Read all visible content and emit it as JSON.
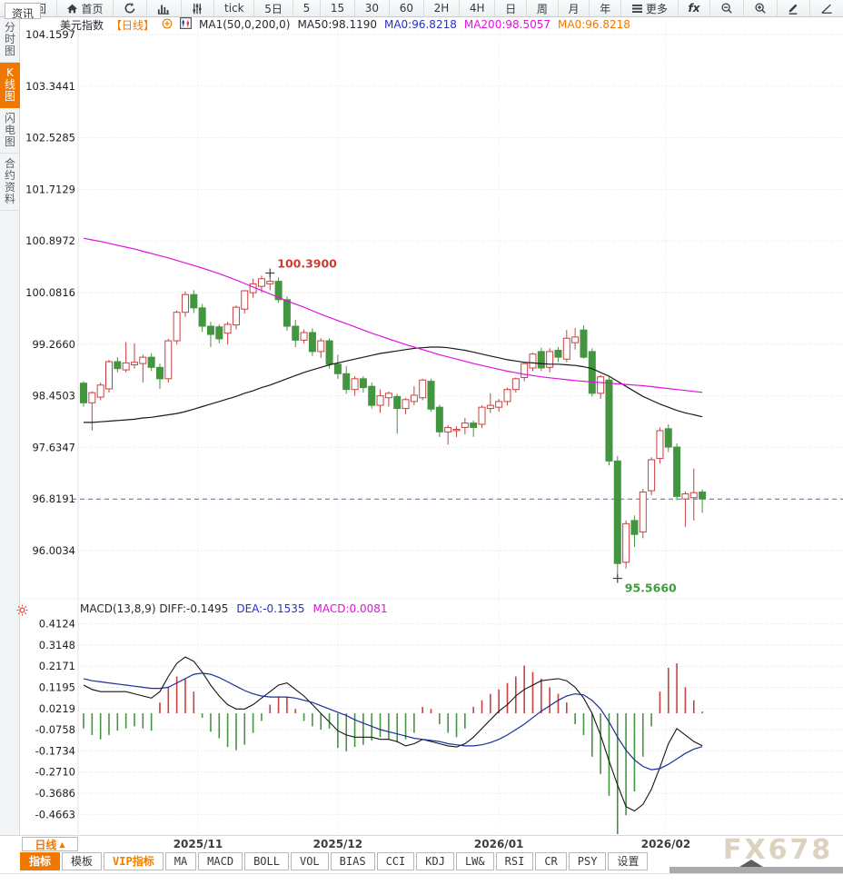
{
  "toolbar": {
    "items": [
      {
        "icon": "back-arrow-icon",
        "label": "返回"
      },
      {
        "icon": "home-icon",
        "label": "首页"
      },
      {
        "icon": "refresh-icon",
        "label": ""
      },
      {
        "icon": "bar-chart-icon",
        "label": ""
      },
      {
        "icon": "sliders-icon",
        "label": ""
      },
      {
        "label": "tick"
      },
      {
        "label": "5日"
      },
      {
        "label": "5"
      },
      {
        "label": "15"
      },
      {
        "label": "30"
      },
      {
        "label": "60"
      },
      {
        "label": "2H"
      },
      {
        "label": "4H"
      },
      {
        "label": "日"
      },
      {
        "label": "周"
      },
      {
        "label": "月"
      },
      {
        "label": "年"
      },
      {
        "icon": "menu-icon",
        "label": "更多"
      },
      {
        "icon": "fx-icon",
        "label": ""
      },
      {
        "icon": "zoom-out-icon",
        "label": ""
      },
      {
        "icon": "zoom-in-icon",
        "label": ""
      },
      {
        "icon": "pen-icon",
        "label": ""
      },
      {
        "icon": "angle-icon",
        "label": ""
      }
    ]
  },
  "sidebar": {
    "items": [
      {
        "label": "分时图",
        "selected": false
      },
      {
        "label": "K线图",
        "selected": true
      },
      {
        "label": "闪电图",
        "selected": false
      },
      {
        "label": "合约资料",
        "selected": false
      }
    ]
  },
  "chart_header": {
    "parts": [
      {
        "text": "美元指数",
        "cls": "hp-dark"
      },
      {
        "text": "【日线】",
        "cls": "hp-orange"
      },
      {
        "icon": "plus-circle-icon"
      },
      {
        "icon": "kline-mini-icon"
      },
      {
        "text": "MA1(50,0,200,0)",
        "cls": "hp-dark"
      },
      {
        "text": "MA50:98.1190",
        "cls": "hp-dark"
      },
      {
        "text": "MA0:96.8218",
        "cls": "hp-blue"
      },
      {
        "text": "MA200:98.5057",
        "cls": "hp-magenta"
      },
      {
        "text": "MA0:96.8218",
        "cls": "hp-orange"
      }
    ]
  },
  "macd_header": {
    "parts": [
      {
        "text": "MACD(13,8,9) DIFF:-0.1495",
        "cls": "hp-dark"
      },
      {
        "text": "DEA:-0.1535",
        "cls": "hp-blue"
      },
      {
        "text": "MACD:0.0081",
        "cls": "hp-magenta"
      }
    ]
  },
  "bottom_bar": {
    "period_label": "日线",
    "period_arrow": "▲",
    "tabs": [
      {
        "label": "指标",
        "selected": true
      },
      {
        "label": "模板"
      },
      {
        "label": "VIP指标",
        "vip": true
      },
      {
        "label": "MA"
      },
      {
        "label": "MACD"
      },
      {
        "label": "BOLL"
      },
      {
        "label": "VOL"
      },
      {
        "label": "BIAS"
      },
      {
        "label": "CCI"
      },
      {
        "label": "KDJ"
      },
      {
        "label": "LW&"
      },
      {
        "label": "RSI"
      },
      {
        "label": "CR"
      },
      {
        "label": "PSY"
      },
      {
        "label": "设置"
      }
    ],
    "partial_tab": "资讯"
  },
  "watermark": "FX678",
  "colors": {
    "accent_orange": "#f07800",
    "up_red": "#c94040",
    "down_green": "#43953f",
    "ma50_black": "#1a1a1a",
    "ma200_magenta": "#e012e0",
    "dea_blue": "#1b2f9b",
    "price_line_blue": "#2a7ad2",
    "grid": "#dedede",
    "annotation_red": "#cc3b33",
    "annotation_green": "#3f9c3f"
  },
  "chart_data": [
    {
      "type": "candlestick",
      "title": "美元指数 日线 (US Dollar Index, daily)",
      "ylabel": "price",
      "grid": true,
      "y_ticks": [
        104.1597,
        103.3441,
        102.5285,
        101.7129,
        100.8972,
        100.0816,
        99.266,
        98.4503,
        97.6347,
        96.8191,
        96.0034
      ],
      "price_line": 96.8191,
      "annotations": {
        "high": {
          "index": 22,
          "value": 100.39,
          "label": "100.3900"
        },
        "low": {
          "index": 63,
          "value": 95.566,
          "label": "95.5660"
        }
      },
      "x_labels": [
        {
          "label": "2025/11",
          "index": 13.5
        },
        {
          "label": "2025/12",
          "index": 30
        },
        {
          "label": "2026/01",
          "index": 49
        },
        {
          "label": "2026/02",
          "index": 68.7
        }
      ],
      "candles": [
        [
          98.65,
          98.68,
          98.28,
          98.34
        ],
        [
          98.34,
          98.52,
          97.9,
          98.5
        ],
        [
          98.43,
          98.66,
          98.38,
          98.62
        ],
        [
          98.56,
          99.02,
          98.5,
          98.99
        ],
        [
          98.99,
          99.06,
          98.82,
          98.88
        ],
        [
          98.86,
          99.3,
          98.82,
          98.97
        ],
        [
          98.94,
          99.28,
          98.88,
          98.98
        ],
        [
          98.96,
          99.1,
          98.66,
          99.06
        ],
        [
          99.06,
          99.12,
          98.84,
          98.9
        ],
        [
          98.9,
          98.96,
          98.56,
          98.72
        ],
        [
          98.72,
          99.35,
          98.66,
          99.32
        ],
        [
          99.32,
          99.8,
          99.26,
          99.77
        ],
        [
          99.77,
          100.1,
          99.7,
          100.05
        ],
        [
          100.05,
          100.12,
          99.76,
          99.84
        ],
        [
          99.84,
          99.9,
          99.46,
          99.55
        ],
        [
          99.55,
          99.62,
          99.22,
          99.42
        ],
        [
          99.54,
          99.58,
          99.28,
          99.35
        ],
        [
          99.44,
          99.62,
          99.26,
          99.58
        ],
        [
          99.57,
          99.88,
          99.5,
          99.85
        ],
        [
          99.82,
          100.12,
          99.75,
          100.11
        ],
        [
          100.08,
          100.3,
          100.0,
          100.22
        ],
        [
          100.18,
          100.35,
          100.08,
          100.3
        ],
        [
          100.22,
          100.39,
          100.12,
          100.26
        ],
        [
          100.26,
          100.32,
          99.92,
          99.97
        ],
        [
          99.97,
          100.02,
          99.48,
          99.55
        ],
        [
          99.55,
          99.65,
          99.22,
          99.33
        ],
        [
          99.33,
          99.5,
          99.28,
          99.45
        ],
        [
          99.45,
          99.52,
          99.08,
          99.15
        ],
        [
          99.15,
          99.36,
          99.05,
          99.32
        ],
        [
          99.32,
          99.36,
          98.88,
          98.95
        ],
        [
          98.95,
          99.1,
          98.72,
          98.8
        ],
        [
          98.8,
          98.92,
          98.48,
          98.55
        ],
        [
          98.55,
          98.76,
          98.45,
          98.72
        ],
        [
          98.72,
          98.76,
          98.5,
          98.58
        ],
        [
          98.6,
          98.66,
          98.25,
          98.3
        ],
        [
          98.3,
          98.55,
          98.18,
          98.45
        ],
        [
          98.42,
          98.52,
          98.28,
          98.49
        ],
        [
          98.44,
          98.48,
          97.85,
          98.25
        ],
        [
          98.25,
          98.42,
          98.16,
          98.39
        ],
        [
          98.36,
          98.6,
          98.3,
          98.46
        ],
        [
          98.42,
          98.72,
          98.38,
          98.7
        ],
        [
          98.68,
          98.72,
          98.2,
          98.24
        ],
        [
          98.27,
          98.31,
          97.8,
          97.88
        ],
        [
          97.88,
          97.99,
          97.68,
          97.95
        ],
        [
          97.9,
          97.97,
          97.8,
          97.92
        ],
        [
          97.95,
          98.1,
          97.84,
          98.02
        ],
        [
          98.02,
          98.06,
          97.8,
          97.95
        ],
        [
          98.0,
          98.3,
          97.94,
          98.27
        ],
        [
          98.25,
          98.49,
          98.18,
          98.3
        ],
        [
          98.27,
          98.4,
          98.2,
          98.36
        ],
        [
          98.36,
          98.58,
          98.3,
          98.55
        ],
        [
          98.55,
          98.74,
          98.5,
          98.72
        ],
        [
          98.74,
          98.98,
          98.68,
          98.96
        ],
        [
          98.89,
          99.13,
          98.84,
          99.11
        ],
        [
          99.15,
          99.21,
          98.84,
          98.89
        ],
        [
          98.9,
          99.2,
          98.82,
          99.15
        ],
        [
          99.17,
          99.22,
          98.98,
          99.06
        ],
        [
          99.03,
          99.49,
          98.98,
          99.36
        ],
        [
          99.29,
          99.52,
          99.18,
          99.38
        ],
        [
          99.49,
          99.56,
          99.04,
          99.06
        ],
        [
          99.15,
          99.2,
          98.44,
          98.49
        ],
        [
          98.49,
          98.78,
          98.4,
          98.75
        ],
        [
          98.7,
          98.75,
          97.35,
          97.42
        ],
        [
          97.42,
          97.5,
          95.566,
          95.8
        ],
        [
          95.82,
          96.48,
          95.72,
          96.43
        ],
        [
          96.48,
          96.56,
          96.06,
          96.26
        ],
        [
          96.3,
          96.98,
          96.2,
          96.93
        ],
        [
          96.95,
          97.48,
          96.88,
          97.44
        ],
        [
          97.46,
          97.95,
          97.38,
          97.9
        ],
        [
          97.93,
          98.0,
          97.56,
          97.64
        ],
        [
          97.64,
          97.7,
          96.8,
          96.86
        ],
        [
          96.82,
          96.94,
          96.38,
          96.9
        ],
        [
          96.84,
          97.3,
          96.48,
          96.92
        ],
        [
          96.93,
          96.97,
          96.6,
          96.8191
        ]
      ],
      "ma50": [
        98.03,
        98.03,
        98.04,
        98.05,
        98.06,
        98.07,
        98.08,
        98.1,
        98.11,
        98.13,
        98.15,
        98.17,
        98.2,
        98.24,
        98.28,
        98.32,
        98.36,
        98.4,
        98.44,
        98.49,
        98.53,
        98.58,
        98.62,
        98.67,
        98.72,
        98.77,
        98.82,
        98.86,
        98.9,
        98.94,
        98.97,
        99.0,
        99.03,
        99.06,
        99.09,
        99.12,
        99.14,
        99.16,
        99.18,
        99.2,
        99.21,
        99.22,
        99.22,
        99.21,
        99.19,
        99.17,
        99.14,
        99.11,
        99.08,
        99.05,
        99.02,
        99.0,
        98.98,
        98.97,
        98.96,
        98.95,
        98.95,
        98.94,
        98.93,
        98.91,
        98.88,
        98.82,
        98.76,
        98.68,
        98.6,
        98.52,
        98.44,
        98.38,
        98.32,
        98.27,
        98.22,
        98.18,
        98.15,
        98.119
      ],
      "ma200": [
        100.94,
        100.915,
        100.89,
        100.86,
        100.83,
        100.8,
        100.77,
        100.735,
        100.7,
        100.665,
        100.63,
        100.59,
        100.55,
        100.51,
        100.47,
        100.425,
        100.38,
        100.33,
        100.28,
        100.225,
        100.17,
        100.115,
        100.06,
        100.005,
        99.95,
        99.9,
        99.85,
        99.795,
        99.74,
        99.69,
        99.64,
        99.59,
        99.54,
        99.49,
        99.44,
        99.395,
        99.35,
        99.305,
        99.26,
        99.22,
        99.18,
        99.14,
        99.1,
        99.065,
        99.03,
        98.995,
        98.96,
        98.93,
        98.9,
        98.87,
        98.84,
        98.815,
        98.79,
        98.77,
        98.75,
        98.735,
        98.72,
        98.705,
        98.69,
        98.68,
        98.67,
        98.66,
        98.65,
        98.64,
        98.63,
        98.62,
        98.61,
        98.595,
        98.58,
        98.565,
        98.55,
        98.535,
        98.52,
        98.5057
      ],
      "ma_legend": {
        "ma50": 98.119,
        "ma200": 98.5057,
        "ma0": 96.8218
      }
    },
    {
      "type": "macd",
      "params": "(13,8,9)",
      "diff_value": -0.1495,
      "dea_value": -0.1535,
      "macd_value": 0.0081,
      "y_ticks": [
        0.4124,
        0.3148,
        0.2171,
        0.1195,
        0.0219,
        -0.0758,
        -0.1734,
        -0.271,
        -0.3686,
        -0.4663
      ],
      "histogram": [
        -0.07,
        -0.1,
        -0.12,
        -0.1,
        -0.08,
        -0.07,
        -0.06,
        -0.07,
        -0.08,
        0.05,
        0.12,
        0.17,
        0.16,
        0.1,
        -0.02,
        -0.085,
        -0.115,
        -0.155,
        -0.17,
        -0.145,
        -0.09,
        -0.035,
        0.04,
        0.078,
        0.075,
        0.02,
        -0.035,
        -0.06,
        -0.075,
        -0.07,
        -0.16,
        -0.175,
        -0.155,
        -0.145,
        -0.125,
        -0.11,
        -0.12,
        -0.135,
        -0.12,
        -0.09,
        0.03,
        0.02,
        -0.05,
        -0.09,
        -0.11,
        -0.07,
        0.03,
        0.06,
        0.09,
        0.11,
        0.14,
        0.17,
        0.22,
        0.19,
        0.16,
        0.12,
        0.09,
        0.05,
        -0.05,
        -0.1,
        -0.2,
        -0.28,
        -0.38,
        -0.56,
        -0.47,
        -0.36,
        -0.2,
        -0.06,
        0.1,
        0.21,
        0.23,
        0.12,
        0.06,
        0.008
      ],
      "diff": [
        0.13,
        0.11,
        0.1,
        0.1,
        0.1,
        0.1,
        0.09,
        0.08,
        0.07,
        0.1,
        0.17,
        0.23,
        0.26,
        0.24,
        0.19,
        0.13,
        0.08,
        0.04,
        0.02,
        0.02,
        0.04,
        0.07,
        0.1,
        0.13,
        0.14,
        0.11,
        0.08,
        0.04,
        0.0,
        -0.04,
        -0.08,
        -0.1,
        -0.11,
        -0.11,
        -0.11,
        -0.12,
        -0.12,
        -0.13,
        -0.15,
        -0.14,
        -0.12,
        -0.13,
        -0.14,
        -0.15,
        -0.155,
        -0.14,
        -0.11,
        -0.07,
        -0.03,
        0.01,
        0.04,
        0.08,
        0.11,
        0.13,
        0.15,
        0.155,
        0.16,
        0.15,
        0.12,
        0.07,
        0.0,
        -0.1,
        -0.22,
        -0.33,
        -0.43,
        -0.45,
        -0.42,
        -0.35,
        -0.25,
        -0.14,
        -0.07,
        -0.1,
        -0.13,
        -0.1495
      ],
      "dea": [
        0.16,
        0.15,
        0.145,
        0.14,
        0.135,
        0.13,
        0.125,
        0.12,
        0.115,
        0.115,
        0.12,
        0.14,
        0.16,
        0.18,
        0.185,
        0.18,
        0.165,
        0.145,
        0.125,
        0.105,
        0.09,
        0.08,
        0.075,
        0.075,
        0.075,
        0.07,
        0.06,
        0.05,
        0.035,
        0.02,
        0.005,
        -0.01,
        -0.03,
        -0.045,
        -0.06,
        -0.075,
        -0.085,
        -0.095,
        -0.105,
        -0.115,
        -0.12,
        -0.125,
        -0.13,
        -0.14,
        -0.145,
        -0.15,
        -0.15,
        -0.145,
        -0.135,
        -0.12,
        -0.1,
        -0.075,
        -0.05,
        -0.02,
        0.01,
        0.035,
        0.06,
        0.08,
        0.09,
        0.085,
        0.06,
        0.02,
        -0.04,
        -0.11,
        -0.17,
        -0.215,
        -0.245,
        -0.26,
        -0.255,
        -0.235,
        -0.21,
        -0.185,
        -0.165,
        -0.1535
      ]
    }
  ]
}
